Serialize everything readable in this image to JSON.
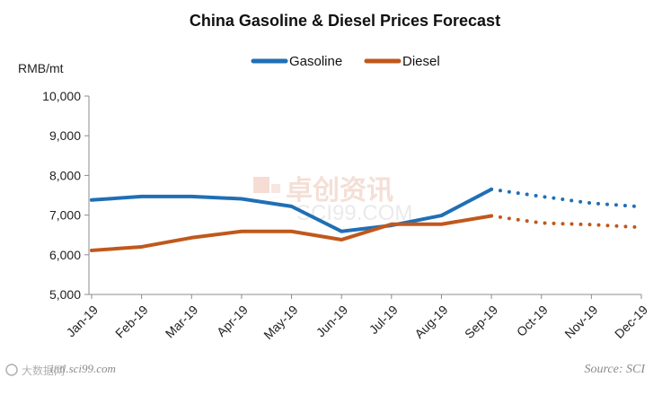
{
  "chart_data": {
    "type": "line",
    "title": "China Gasoline & Diesel Prices Forecast",
    "ylabel": "RMB/mt",
    "xlabel": "",
    "categories": [
      "Jan-19",
      "Feb-19",
      "Mar-19",
      "Apr-19",
      "May-19",
      "Jun-19",
      "Jul-19",
      "Aug-19",
      "Sep-19",
      "Oct-19",
      "Nov-19",
      "Dec-19"
    ],
    "ylim": [
      5000,
      10000
    ],
    "yticks": [
      5000,
      6000,
      7000,
      8000,
      9000,
      10000
    ],
    "ytick_labels": [
      "5,000",
      "6,000",
      "7,000",
      "8,000",
      "9,000",
      "10,000"
    ],
    "legend_position": "top-center",
    "forecast_start_index": 8,
    "series": [
      {
        "name": "Gasoline",
        "color": "#1f6fb5",
        "values": [
          7380,
          7470,
          7470,
          7410,
          7220,
          6590,
          6740,
          6990,
          7650,
          7470,
          7300,
          7210
        ]
      },
      {
        "name": "Diesel",
        "color": "#c0581c",
        "values": [
          6110,
          6200,
          6430,
          6590,
          6590,
          6380,
          6770,
          6770,
          6980,
          6800,
          6760,
          6690
        ]
      }
    ],
    "source": "Source: SCI"
  },
  "watermark": {
    "brand_text": "卓创资讯",
    "brand_url": "SCI99.COM",
    "site": "intl.sci99.com",
    "corner_text": "大数据网"
  }
}
